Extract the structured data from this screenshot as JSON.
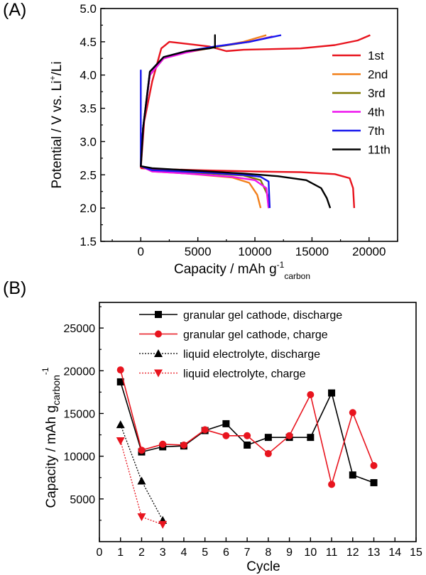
{
  "panels": [
    {
      "label": "(A)"
    },
    {
      "label": "(B)"
    }
  ],
  "chart_data": [
    {
      "type": "line",
      "xlabel": "Capacity / mAh g",
      "xlabel_sup": "-1",
      "xlabel_sub": "carbon",
      "ylabel": "Potential / V vs. Li",
      "ylabel_sup": "+",
      "ylabel_tail": "/Li",
      "xlim": [
        -3500,
        22500
      ],
      "ylim": [
        1.5,
        5.0
      ],
      "xticks": [
        0,
        5000,
        10000,
        15000,
        20000
      ],
      "yticks": [
        1.5,
        2.0,
        2.5,
        3.0,
        3.5,
        4.0,
        4.5,
        5.0
      ],
      "ytick_labels": [
        "1.5",
        "2.0",
        "2.5",
        "3.0",
        "3.5",
        "4.0",
        "4.5",
        "5.0"
      ],
      "legend": "right",
      "colors": {
        "1st": "#e8141e",
        "2nd": "#f2801c",
        "3rd": "#807a00",
        "4th": "#ee14ee",
        "7th": "#1818ee",
        "11th": "#000000"
      },
      "series": [
        {
          "name": "1st",
          "color": "#e8141e",
          "discharge": [
            [
              0,
              2.6
            ],
            [
              1000,
              2.59
            ],
            [
              5000,
              2.57
            ],
            [
              10000,
              2.55
            ],
            [
              14000,
              2.54
            ],
            [
              17000,
              2.51
            ],
            [
              18300,
              2.45
            ],
            [
              18600,
              2.3
            ],
            [
              18700,
              2.0
            ]
          ],
          "charge": [
            [
              0,
              2.6
            ],
            [
              300,
              3.3
            ],
            [
              1000,
              3.9
            ],
            [
              1800,
              4.4
            ],
            [
              2500,
              4.5
            ],
            [
              4000,
              4.47
            ],
            [
              6000,
              4.43
            ],
            [
              7500,
              4.36
            ],
            [
              9000,
              4.38
            ],
            [
              14000,
              4.4
            ],
            [
              17000,
              4.45
            ],
            [
              19000,
              4.52
            ],
            [
              20100,
              4.6
            ]
          ]
        },
        {
          "name": "2nd",
          "color": "#f2801c",
          "discharge": [
            [
              0,
              2.63
            ],
            [
              1000,
              2.55
            ],
            [
              4000,
              2.52
            ],
            [
              8000,
              2.46
            ],
            [
              9500,
              2.38
            ],
            [
              10200,
              2.2
            ],
            [
              10500,
              2.0
            ]
          ],
          "charge": [
            [
              0,
              2.62
            ],
            [
              200,
              3.2
            ],
            [
              800,
              4.0
            ],
            [
              2000,
              4.25
            ],
            [
              4000,
              4.34
            ],
            [
              6500,
              4.42
            ],
            [
              9000,
              4.5
            ],
            [
              11000,
              4.6
            ]
          ]
        },
        {
          "name": "3rd",
          "color": "#807a00",
          "discharge": [
            [
              0,
              2.63
            ],
            [
              1000,
              2.56
            ],
            [
              5000,
              2.53
            ],
            [
              9000,
              2.49
            ],
            [
              10500,
              2.42
            ],
            [
              11100,
              2.2
            ],
            [
              11200,
              2.0
            ]
          ],
          "charge": [
            [
              0,
              2.62
            ],
            [
              200,
              3.2
            ],
            [
              800,
              4.0
            ],
            [
              2000,
              4.25
            ],
            [
              4000,
              4.35
            ],
            [
              6500,
              4.42
            ],
            [
              9500,
              4.5
            ],
            [
              11500,
              4.58
            ]
          ]
        },
        {
          "name": "4th",
          "color": "#ee14ee",
          "discharge": [
            [
              0,
              2.63
            ],
            [
              1000,
              2.55
            ],
            [
              4000,
              2.52
            ],
            [
              8000,
              2.47
            ],
            [
              10000,
              2.42
            ],
            [
              11000,
              2.3
            ],
            [
              11200,
              2.0
            ]
          ],
          "charge": [
            [
              0,
              2.62
            ],
            [
              200,
              3.2
            ],
            [
              800,
              4.0
            ],
            [
              2000,
              4.25
            ],
            [
              4000,
              4.34
            ],
            [
              6500,
              4.43
            ],
            [
              9500,
              4.5
            ],
            [
              11600,
              4.58
            ]
          ]
        },
        {
          "name": "7th",
          "color": "#1818ee",
          "discharge": [
            [
              0,
              4.08
            ],
            [
              0,
              2.63
            ],
            [
              1000,
              2.57
            ],
            [
              5000,
              2.54
            ],
            [
              9000,
              2.5
            ],
            [
              10500,
              2.47
            ],
            [
              11200,
              2.4
            ],
            [
              11300,
              2.0
            ]
          ],
          "charge": [
            [
              0,
              2.62
            ],
            [
              200,
              3.2
            ],
            [
              800,
              4.05
            ],
            [
              2000,
              4.27
            ],
            [
              4000,
              4.36
            ],
            [
              6500,
              4.43
            ],
            [
              9500,
              4.5
            ],
            [
              12300,
              4.6
            ]
          ]
        },
        {
          "name": "11th",
          "color": "#000000",
          "discharge": [
            [
              0,
              2.63
            ],
            [
              1000,
              2.6
            ],
            [
              5000,
              2.56
            ],
            [
              9000,
              2.52
            ],
            [
              12000,
              2.48
            ],
            [
              14500,
              2.42
            ],
            [
              15800,
              2.3
            ],
            [
              16300,
              2.15
            ],
            [
              16600,
              2.0
            ]
          ],
          "charge": [
            [
              0,
              2.62
            ],
            [
              200,
              3.2
            ],
            [
              800,
              4.05
            ],
            [
              2000,
              4.27
            ],
            [
              4000,
              4.36
            ],
            [
              6000,
              4.4
            ],
            [
              6500,
              4.42
            ],
            [
              6500,
              4.6
            ],
            [
              6500,
              4.4
            ]
          ]
        }
      ]
    },
    {
      "type": "line",
      "xlabel": "Cycle",
      "ylabel": "Capacity / mAh g",
      "ylabel_sub": "carbon",
      "ylabel_sup": "-1",
      "xlim": [
        0,
        15
      ],
      "ylim": [
        0,
        28000
      ],
      "xticks": [
        0,
        1,
        2,
        3,
        4,
        5,
        6,
        7,
        8,
        9,
        10,
        11,
        12,
        13,
        14,
        15
      ],
      "yticks": [
        5000,
        10000,
        15000,
        20000,
        25000
      ],
      "legend": "top-right",
      "series": [
        {
          "name": "granular gel cathode, discharge",
          "color": "#000000",
          "marker": "square",
          "dash": "solid",
          "x": [
            1,
            2,
            3,
            4,
            5,
            6,
            7,
            8,
            9,
            10,
            11,
            12,
            13
          ],
          "values": [
            18700,
            10500,
            11100,
            11200,
            13000,
            13800,
            11300,
            12200,
            12200,
            12200,
            17400,
            7800,
            6900
          ]
        },
        {
          "name": "granular gel cathode, charge",
          "color": "#e8141e",
          "marker": "circle",
          "dash": "solid",
          "x": [
            1,
            2,
            3,
            4,
            5,
            6,
            7,
            8,
            9,
            10,
            11,
            12,
            13
          ],
          "values": [
            20100,
            10700,
            11400,
            11300,
            13100,
            12400,
            12400,
            10300,
            12400,
            17200,
            6700,
            15100,
            8900
          ]
        },
        {
          "name": "liquid electrolyte, discharge",
          "color": "#000000",
          "marker": "triangle-up",
          "dash": "dotted",
          "x": [
            1,
            2,
            3
          ],
          "values": [
            13700,
            7100,
            2500
          ]
        },
        {
          "name": "liquid electrolyte, charge",
          "color": "#e8141e",
          "marker": "triangle-down",
          "dash": "dotted",
          "x": [
            1,
            2,
            3
          ],
          "values": [
            11800,
            2900,
            2000
          ]
        }
      ]
    }
  ]
}
